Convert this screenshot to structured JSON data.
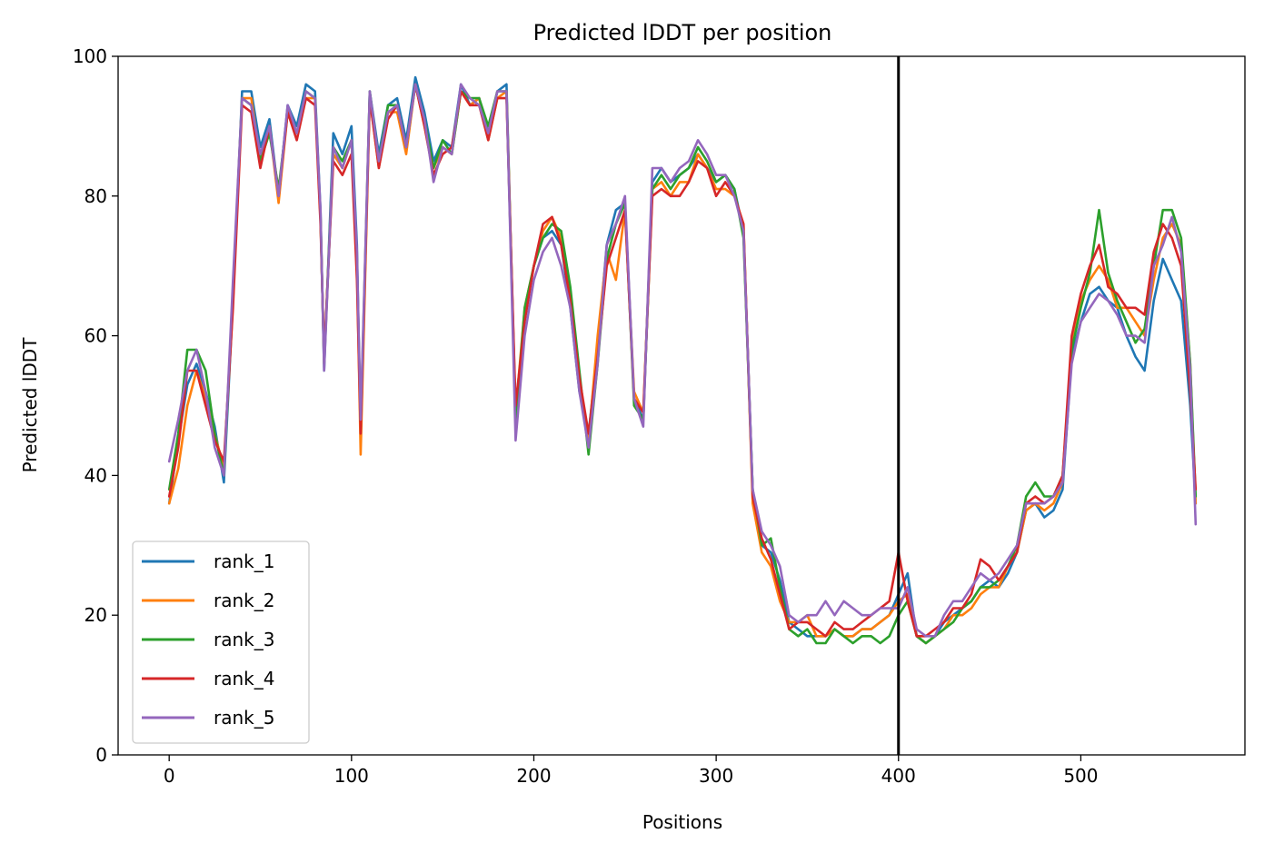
{
  "chart_data": {
    "type": "line",
    "title": "Predicted lDDT per position",
    "xlabel": "Positions",
    "ylabel": "Predicted lDDT",
    "xlim": [
      -28,
      590
    ],
    "ylim": [
      0,
      100
    ],
    "xticks": [
      0,
      100,
      200,
      300,
      400,
      500
    ],
    "yticks": [
      0,
      20,
      40,
      60,
      80,
      100
    ],
    "grid": false,
    "legend_position": "lower left",
    "vline": {
      "x": 400,
      "color": "#000000"
    },
    "x": [
      0,
      5,
      10,
      15,
      20,
      25,
      30,
      35,
      40,
      45,
      50,
      55,
      60,
      65,
      70,
      75,
      80,
      83,
      85,
      90,
      95,
      100,
      103,
      105,
      110,
      115,
      120,
      125,
      130,
      135,
      140,
      145,
      150,
      155,
      160,
      165,
      170,
      175,
      180,
      185,
      190,
      195,
      200,
      205,
      210,
      215,
      220,
      225,
      230,
      235,
      240,
      245,
      250,
      255,
      260,
      265,
      270,
      275,
      280,
      285,
      290,
      295,
      300,
      305,
      310,
      315,
      320,
      325,
      330,
      335,
      340,
      345,
      350,
      355,
      360,
      365,
      370,
      375,
      380,
      385,
      390,
      395,
      400,
      405,
      410,
      415,
      420,
      425,
      430,
      435,
      440,
      445,
      450,
      455,
      460,
      465,
      470,
      475,
      480,
      485,
      490,
      495,
      500,
      505,
      510,
      515,
      520,
      525,
      530,
      535,
      540,
      545,
      550,
      555,
      560,
      563
    ],
    "series": [
      {
        "name": "rank_1",
        "color": "#1f77b4",
        "values": [
          36,
          45,
          53,
          56,
          52,
          47,
          39,
          65,
          95,
          95,
          87,
          91,
          80,
          93,
          90,
          96,
          95,
          78,
          55,
          89,
          86,
          90,
          73,
          45,
          95,
          86,
          93,
          94,
          88,
          97,
          92,
          85,
          88,
          87,
          96,
          93,
          94,
          89,
          95,
          96,
          48,
          63,
          70,
          74,
          75,
          73,
          64,
          52,
          46,
          58,
          73,
          78,
          79,
          51,
          48,
          82,
          84,
          82,
          83,
          84,
          86,
          84,
          82,
          83,
          81,
          75,
          38,
          30,
          29,
          25,
          19,
          18,
          17,
          17,
          17,
          18,
          17,
          17,
          18,
          18,
          19,
          20,
          23,
          26,
          17,
          16,
          17,
          19,
          20,
          21,
          22,
          24,
          25,
          24,
          26,
          29,
          35,
          36,
          34,
          35,
          38,
          57,
          62,
          66,
          67,
          65,
          64,
          60,
          57,
          55,
          65,
          71,
          68,
          65,
          50,
          36
        ]
      },
      {
        "name": "rank_2",
        "color": "#ff7f0e",
        "values": [
          36,
          41,
          50,
          55,
          51,
          46,
          41,
          66,
          94,
          94,
          85,
          90,
          79,
          92,
          89,
          94,
          94,
          77,
          56,
          86,
          84,
          88,
          70,
          43,
          94,
          84,
          92,
          92,
          86,
          96,
          90,
          84,
          87,
          86,
          95,
          93,
          94,
          88,
          94,
          95,
          49,
          64,
          70,
          75,
          77,
          74,
          66,
          53,
          45,
          60,
          72,
          68,
          78,
          52,
          49,
          81,
          82,
          80,
          82,
          82,
          86,
          84,
          81,
          81,
          80,
          76,
          36,
          29,
          27,
          22,
          19,
          19,
          20,
          17,
          17,
          18,
          17,
          17,
          18,
          18,
          19,
          20,
          22,
          23,
          17,
          16,
          17,
          18,
          20,
          20,
          21,
          23,
          24,
          24,
          27,
          29,
          35,
          36,
          35,
          36,
          39,
          59,
          65,
          68,
          70,
          68,
          64,
          64,
          62,
          60,
          68,
          74,
          76,
          73,
          56,
          36
        ]
      },
      {
        "name": "rank_3",
        "color": "#2ca02c",
        "values": [
          38,
          46,
          58,
          58,
          55,
          46,
          40,
          66,
          94,
          93,
          85,
          89,
          81,
          92,
          89,
          95,
          94,
          77,
          56,
          87,
          85,
          88,
          71,
          47,
          95,
          85,
          93,
          93,
          87,
          96,
          91,
          84,
          88,
          86,
          95,
          94,
          94,
          90,
          95,
          95,
          48,
          64,
          70,
          74,
          76,
          75,
          67,
          55,
          43,
          56,
          71,
          76,
          79,
          50,
          48,
          81,
          83,
          81,
          83,
          84,
          87,
          85,
          82,
          83,
          81,
          74,
          38,
          30,
          31,
          24,
          18,
          17,
          18,
          16,
          16,
          18,
          17,
          16,
          17,
          17,
          16,
          17,
          20,
          22,
          17,
          16,
          17,
          18,
          19,
          21,
          22,
          24,
          24,
          25,
          27,
          30,
          37,
          39,
          37,
          37,
          40,
          58,
          64,
          69,
          78,
          69,
          65,
          62,
          59,
          61,
          70,
          78,
          78,
          74,
          56,
          37
        ]
      },
      {
        "name": "rank_4",
        "color": "#d62728",
        "values": [
          37,
          44,
          55,
          55,
          50,
          45,
          42,
          64,
          93,
          92,
          84,
          90,
          80,
          92,
          88,
          94,
          93,
          76,
          57,
          85,
          83,
          86,
          68,
          46,
          94,
          84,
          91,
          93,
          87,
          96,
          90,
          83,
          86,
          87,
          95,
          93,
          93,
          88,
          94,
          94,
          50,
          62,
          70,
          76,
          77,
          73,
          65,
          54,
          46,
          57,
          70,
          74,
          78,
          51,
          49,
          80,
          81,
          80,
          80,
          82,
          85,
          84,
          80,
          82,
          80,
          76,
          37,
          31,
          28,
          23,
          18,
          19,
          19,
          18,
          17,
          19,
          18,
          18,
          19,
          20,
          21,
          22,
          29,
          22,
          17,
          17,
          18,
          19,
          21,
          21,
          23,
          28,
          27,
          25,
          27,
          29,
          36,
          37,
          36,
          37,
          40,
          60,
          66,
          70,
          73,
          67,
          66,
          64,
          64,
          63,
          72,
          76,
          74,
          70,
          52,
          38
        ]
      },
      {
        "name": "rank_5",
        "color": "#9467bd",
        "values": [
          42,
          48,
          55,
          58,
          52,
          44,
          40,
          68,
          94,
          93,
          86,
          90,
          80,
          93,
          89,
          95,
          94,
          78,
          55,
          87,
          84,
          88,
          72,
          48,
          95,
          85,
          92,
          93,
          87,
          96,
          91,
          82,
          87,
          86,
          96,
          94,
          93,
          89,
          95,
          95,
          45,
          60,
          68,
          72,
          74,
          70,
          64,
          52,
          44,
          56,
          73,
          76,
          80,
          51,
          47,
          84,
          84,
          82,
          84,
          85,
          88,
          86,
          83,
          83,
          80,
          75,
          38,
          32,
          30,
          27,
          20,
          19,
          20,
          20,
          22,
          20,
          22,
          21,
          20,
          20,
          21,
          21,
          21,
          24,
          18,
          17,
          17,
          20,
          22,
          22,
          24,
          26,
          25,
          26,
          28,
          30,
          36,
          36,
          36,
          37,
          39,
          56,
          62,
          64,
          66,
          65,
          63,
          60,
          60,
          59,
          70,
          73,
          77,
          72,
          55,
          33
        ]
      }
    ]
  }
}
